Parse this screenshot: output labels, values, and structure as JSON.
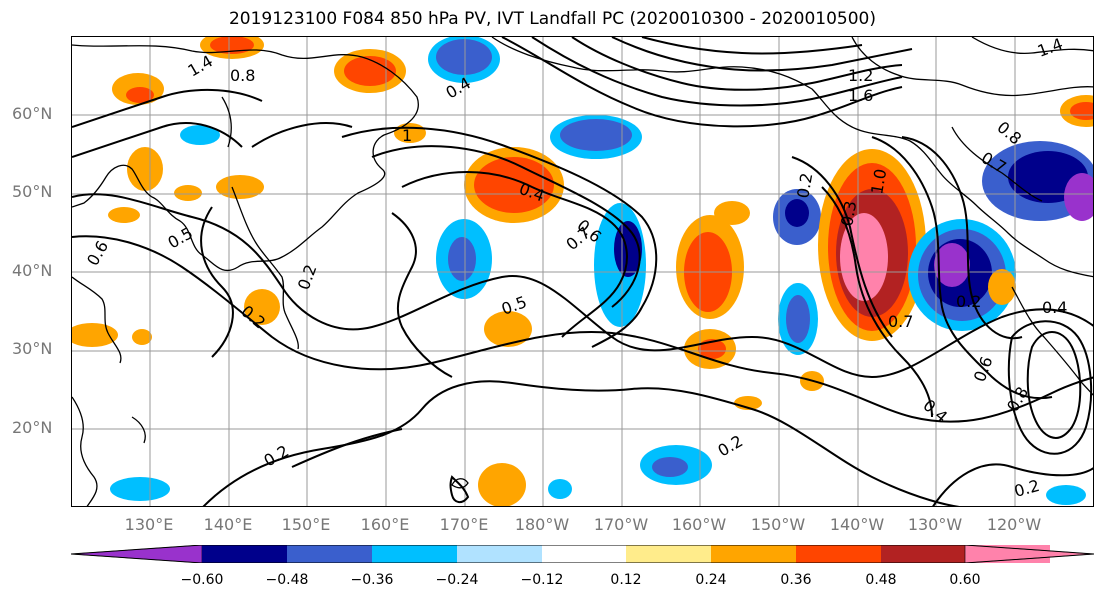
{
  "title": "2019123100 F084 850 hPa PV, IVT Landfall PC (2020010300 - 2020010500)",
  "lat_labels": [
    "60°N",
    "50°N",
    "40°N",
    "30°N",
    "20°N"
  ],
  "lon_labels": [
    "130°E",
    "140°E",
    "150°E",
    "160°E",
    "170°E",
    "180°W",
    "170°W",
    "160°W",
    "150°W",
    "140°W",
    "130°W",
    "120°W"
  ],
  "colorbar": {
    "ticks": [
      "−0.60",
      "−0.48",
      "−0.36",
      "−0.24",
      "−0.12",
      "0.12",
      "0.24",
      "0.36",
      "0.48",
      "0.60"
    ],
    "colors": [
      "#9932cc",
      "#00008b",
      "#3a5fcd",
      "#00bfff",
      "#b0e2ff",
      "#ffffff",
      "#ffec8b",
      "#ffa500",
      "#ff4500",
      "#b22222",
      "#ff82ab"
    ]
  },
  "contour_labels": [
    "1.4",
    "0.8",
    "0.4",
    "1",
    "0.5",
    "0.6",
    "0.2",
    "0.2",
    "0.4",
    "0.6",
    "0.7",
    "0.5",
    "0.2",
    "0.3",
    "1.0",
    "0.7",
    "0.2",
    "0.4",
    "0.6",
    "0.8",
    "0.4",
    "0.2",
    "0.2",
    "0.2",
    "1.2",
    "1.6",
    "1.4",
    "0.8",
    "0.7"
  ]
}
